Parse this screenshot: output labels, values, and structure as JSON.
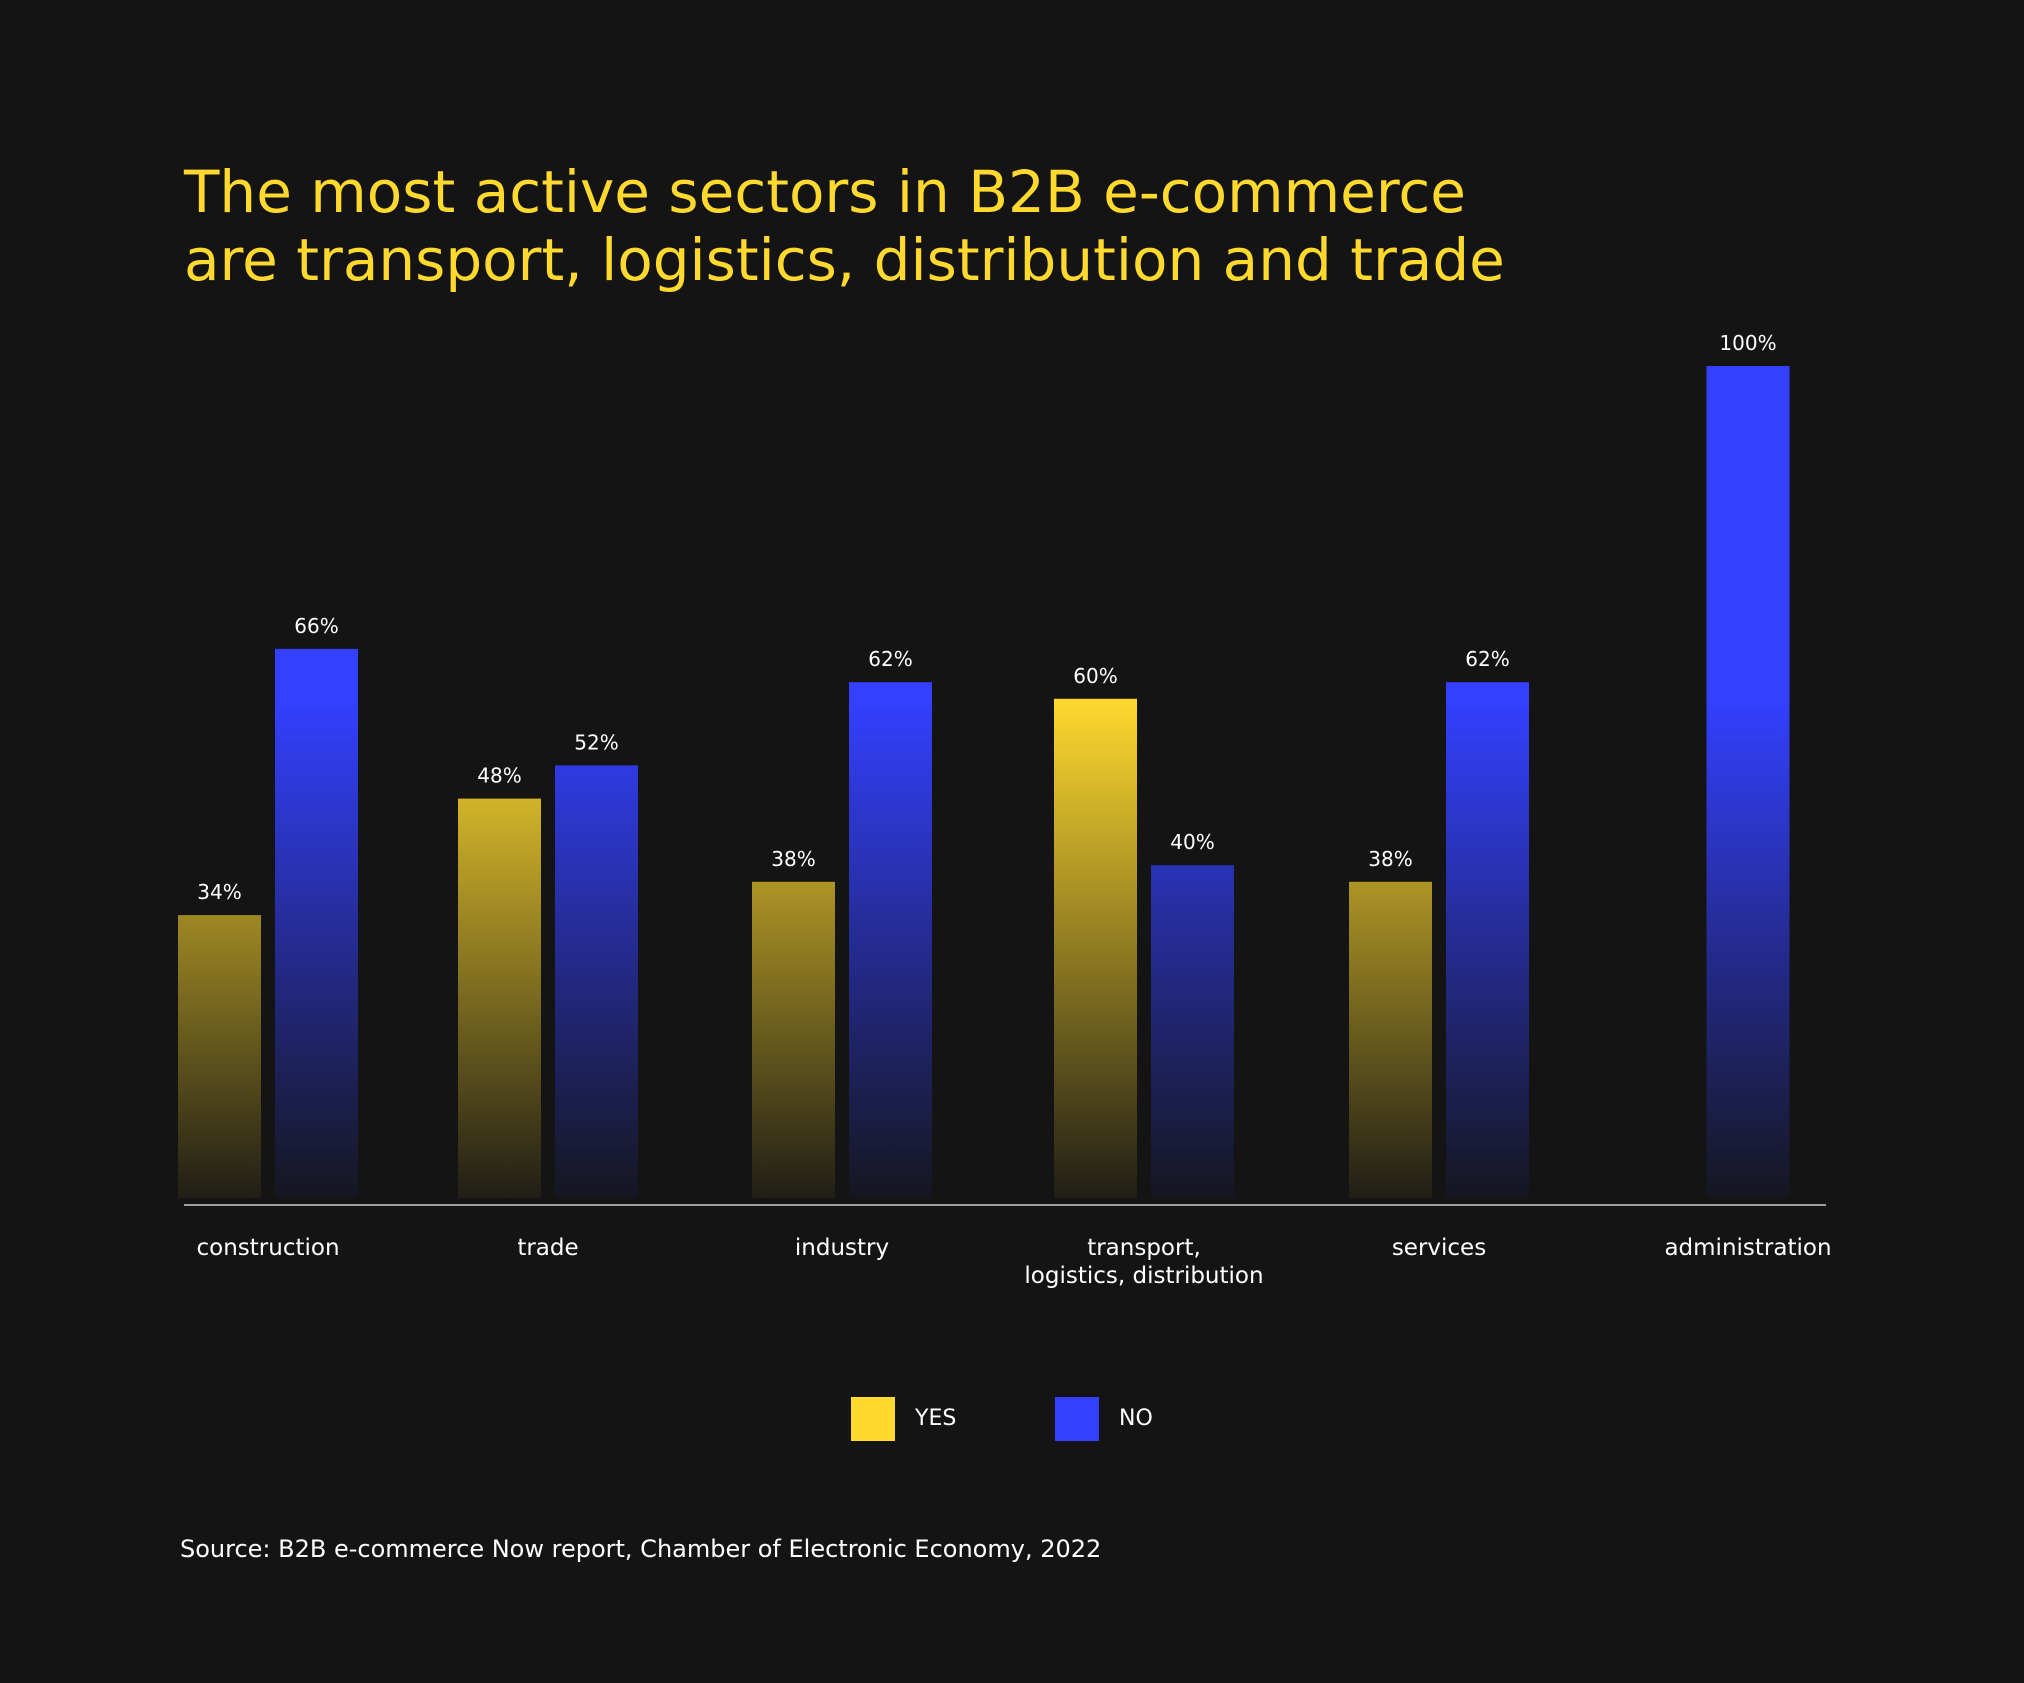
{
  "title_lines": [
    "The most active sectors in B2B e-commerce",
    "are transport, logistics, distribution and trade"
  ],
  "source": "Source: B2B e-commerce Now report, Chamber of Electronic Economy, 2022",
  "colors": {
    "background": "#141414",
    "yes": "#ffd92e",
    "no": "#3340ff",
    "text": "#ffffff",
    "title": "#ffd92e",
    "axis": "#cccccc"
  },
  "legend": [
    {
      "series": "yes",
      "label": "YES",
      "color": "#ffd92e"
    },
    {
      "series": "no",
      "label": "NO",
      "color": "#3340ff"
    }
  ],
  "chart_data": {
    "type": "bar",
    "title": "The most active sectors in B2B e-commerce are transport, logistics, distribution and trade",
    "categories": [
      [
        "construction"
      ],
      [
        "trade"
      ],
      [
        "industry"
      ],
      [
        "transport,",
        "logistics, distribution"
      ],
      [
        "services"
      ],
      [
        "administration"
      ]
    ],
    "series": [
      {
        "name": "YES",
        "color": "#ffd92e",
        "values": [
          34,
          48,
          38,
          60,
          38,
          null
        ]
      },
      {
        "name": "NO",
        "color": "#3340ff",
        "values": [
          66,
          52,
          62,
          40,
          62,
          100
        ]
      }
    ],
    "value_suffix": "%",
    "ylim": [
      0,
      100
    ],
    "grid": false,
    "legend_position": "bottom-center",
    "xlabel": "",
    "ylabel": ""
  }
}
